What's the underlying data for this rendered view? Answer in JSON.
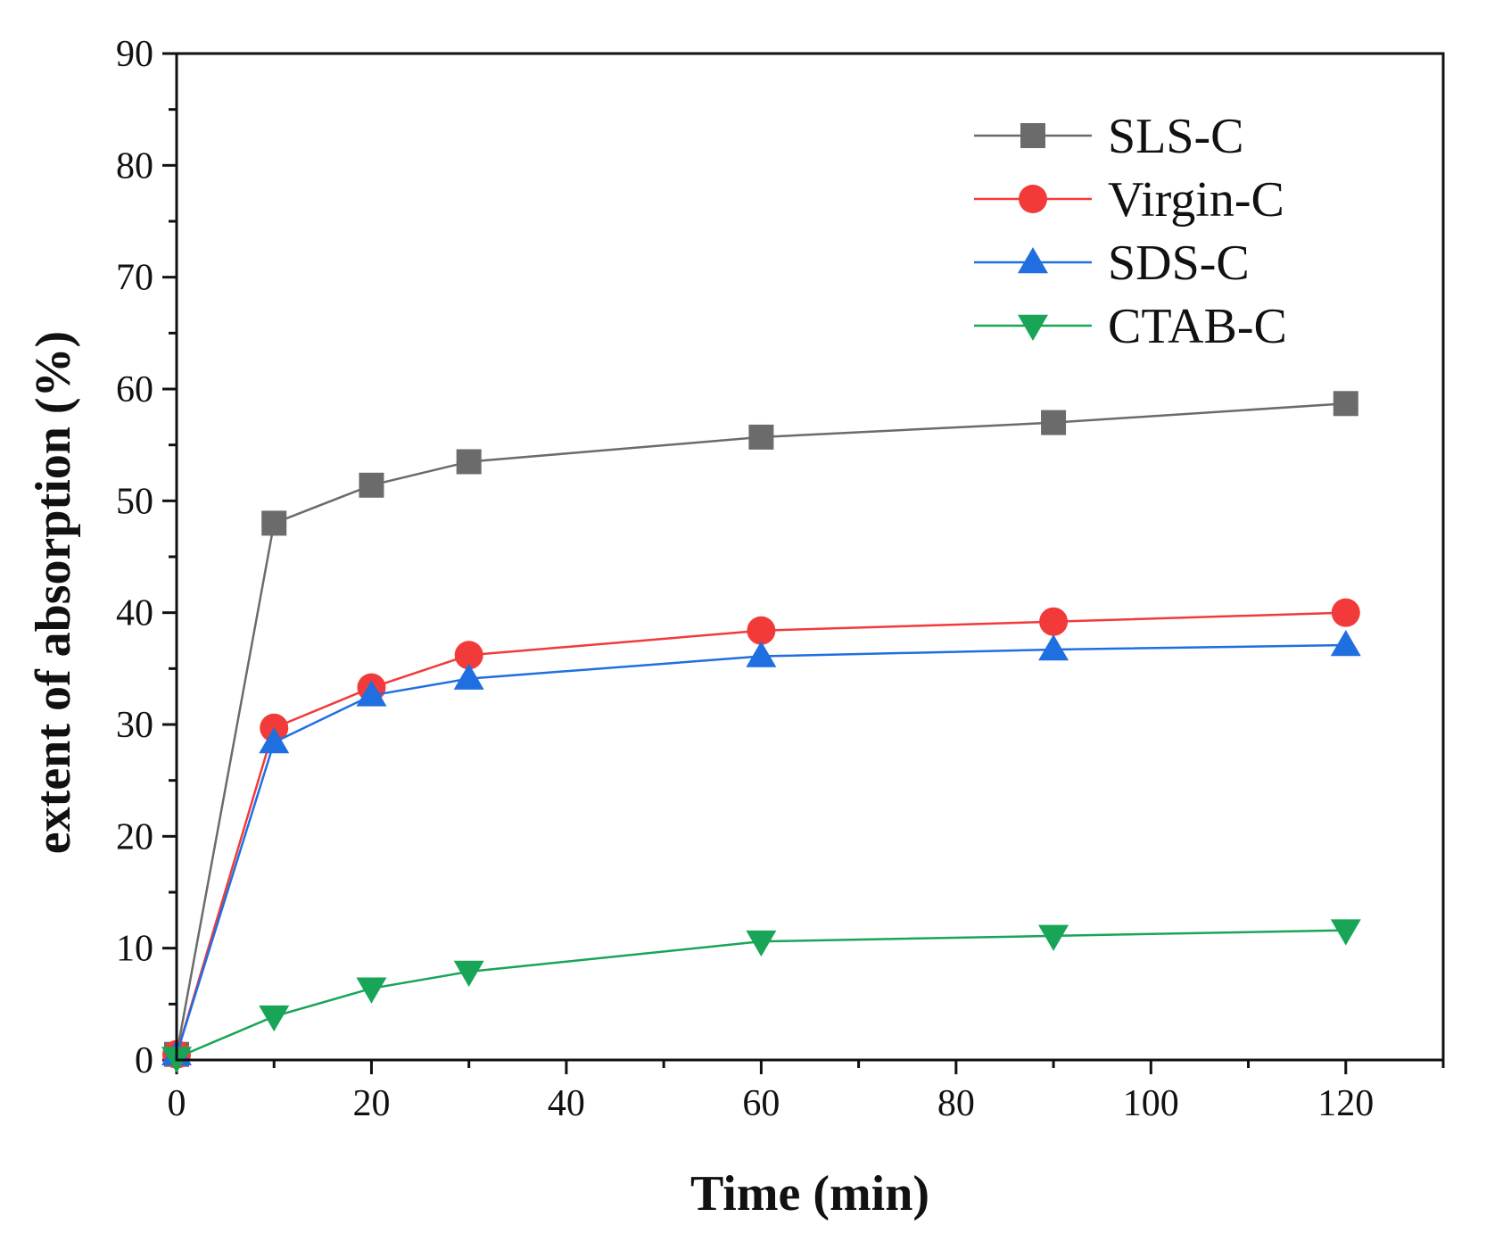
{
  "chart_data": {
    "type": "line",
    "title": "",
    "xlabel": "Time (min)",
    "ylabel": "extent of absorption (%)",
    "xlim": [
      0,
      130
    ],
    "ylim": [
      0,
      90
    ],
    "x_ticks": [
      0,
      20,
      40,
      60,
      80,
      100,
      120
    ],
    "x_tick_labels": [
      "0",
      "20",
      "40",
      "60",
      "80",
      "100",
      "120"
    ],
    "y_ticks": [
      0,
      10,
      20,
      30,
      40,
      50,
      60,
      70,
      80,
      90
    ],
    "y_tick_labels": [
      "0",
      "10",
      "20",
      "30",
      "40",
      "50",
      "60",
      "70",
      "80",
      "90"
    ],
    "x_minor_step": 10,
    "y_minor_step": 5,
    "grid": false,
    "legend_position": "top-right",
    "x": [
      0,
      10,
      20,
      30,
      60,
      90,
      120
    ],
    "series": [
      {
        "name": "SLS-C",
        "values": [
          0.5,
          48.0,
          51.4,
          53.5,
          55.7,
          57.0,
          58.7
        ],
        "color": "#6b6b6b",
        "marker": "square"
      },
      {
        "name": "Virgin-C",
        "values": [
          0.5,
          29.7,
          33.3,
          36.2,
          38.4,
          39.2,
          40.0
        ],
        "color": "#f23a3a",
        "marker": "circle"
      },
      {
        "name": "SDS-C",
        "values": [
          0.5,
          28.4,
          32.6,
          34.1,
          36.1,
          36.7,
          37.1
        ],
        "color": "#1f6fe0",
        "marker": "triangle-up"
      },
      {
        "name": "CTAB-C",
        "values": [
          0.2,
          3.9,
          6.4,
          7.9,
          10.6,
          11.1,
          11.6
        ],
        "color": "#18a558",
        "marker": "triangle-down"
      }
    ]
  }
}
